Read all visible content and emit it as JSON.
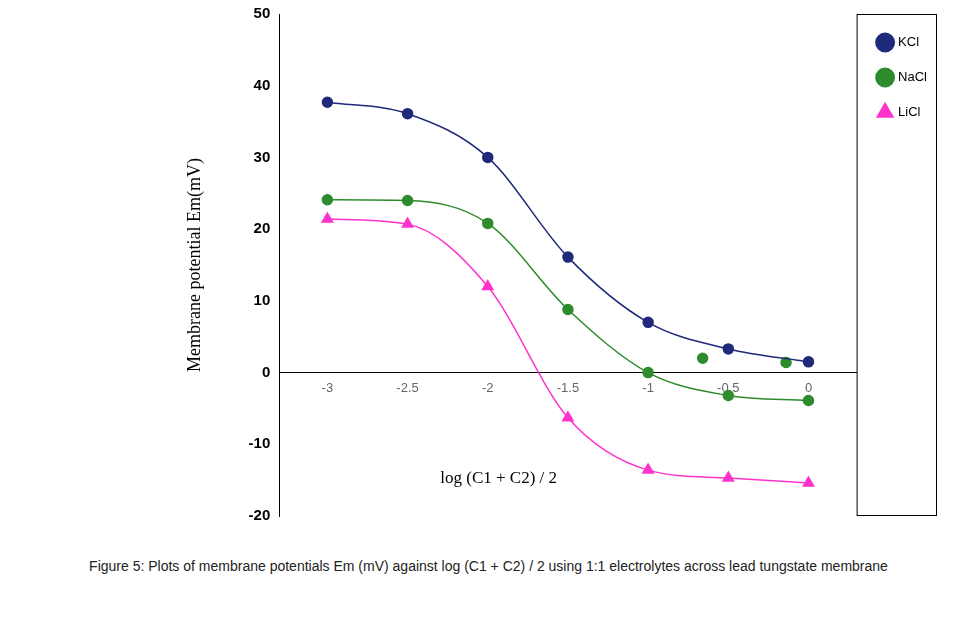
{
  "chart_data": {
    "type": "line",
    "caption": "Figure 5:   Plots of membrane potentials Em (mV) against log  (C1 + C2) / 2 using 1:1 electrolytes across lead tungstate membrane",
    "x_label": "log (C1 + C2) / 2",
    "y_label": "Membrane potential Em(mV)",
    "xlim": [
      -3.3,
      0.3
    ],
    "xticks": [
      -3,
      -2.5,
      -2,
      -1.5,
      -1,
      -0.5,
      0
    ],
    "ylim": [
      -20,
      50
    ],
    "yticks": [
      -20,
      -10,
      0,
      10,
      20,
      30,
      40,
      50
    ],
    "grid": false,
    "legend": "top-right",
    "series": [
      {
        "name": "KCl",
        "color": "#1f2a7a",
        "marker": "circle",
        "line_style": "solid",
        "x": [
          -3,
          -2.5,
          -2,
          -1.5,
          -1,
          -0.5,
          0
        ],
        "values": [
          37.7,
          36.1,
          30.0,
          16.1,
          7.0,
          3.3,
          1.5
        ]
      },
      {
        "name": "NaCl",
        "color": "#2e8b2e",
        "marker": "circle",
        "line_style": "solid",
        "x": [
          -3,
          -2.5,
          -2,
          -1.5,
          -1,
          -0.5,
          0
        ],
        "values": [
          24.1,
          24.0,
          20.8,
          8.8,
          0.0,
          -3.2,
          -3.9
        ]
      },
      {
        "name": "NaCl",
        "color": "#2e8b2e",
        "marker": "circle",
        "line_style": "none",
        "x": [
          -0.66,
          -0.14
        ],
        "values": [
          2.0,
          1.4
        ]
      },
      {
        "name": "LiCl",
        "color": "#ff33cc",
        "marker": "triangle",
        "line_style": "solid",
        "x": [
          -3,
          -2.5,
          -2,
          -1.5,
          -1,
          -0.5,
          0
        ],
        "values": [
          21.4,
          20.7,
          12.0,
          -6.3,
          -13.6,
          -14.7,
          -15.4
        ]
      }
    ]
  }
}
